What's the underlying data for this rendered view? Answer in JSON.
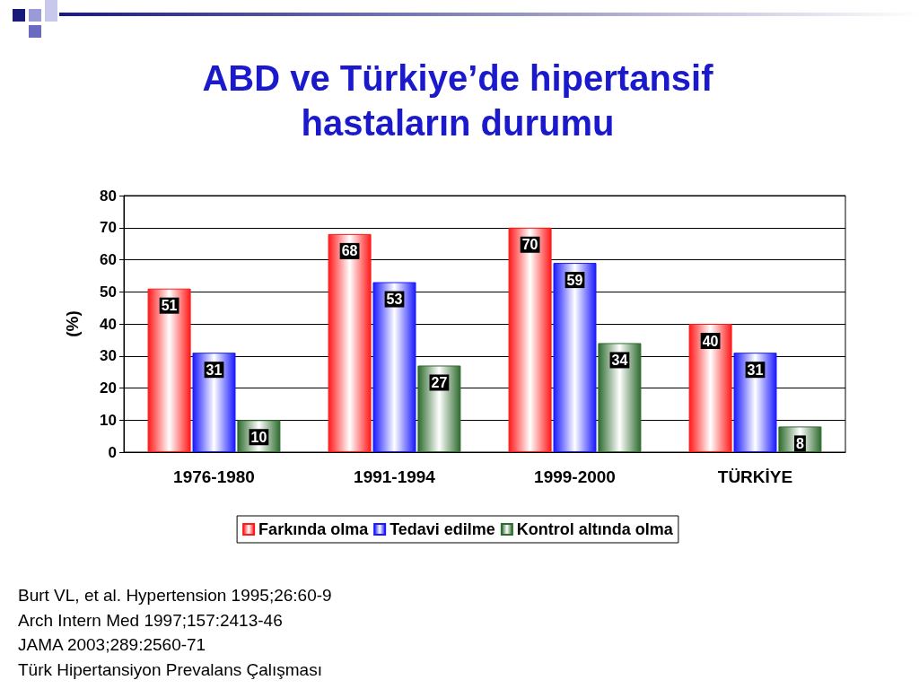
{
  "chart_data": {
    "type": "bar",
    "title": "ABD ve Türkiye’de hipertansif hastaların durumu",
    "ylabel": "(%)",
    "categories": [
      "1976-1980",
      "1991-1994",
      "1999-2000",
      "TÜRKİYE"
    ],
    "series": [
      {
        "name": "Farkında olma",
        "color": "#ff1a1a",
        "values": [
          51,
          68,
          70,
          40
        ]
      },
      {
        "name": "Tedavi edilme",
        "color": "#1a1aff",
        "values": [
          31,
          53,
          59,
          31
        ]
      },
      {
        "name": "Kontrol altında olma",
        "color": "#2e6b2e",
        "values": [
          10,
          27,
          34,
          8
        ]
      }
    ],
    "ylim": [
      0,
      80
    ],
    "yticks": [
      0,
      10,
      20,
      30,
      40,
      50,
      60,
      70,
      80
    ],
    "grid": "y",
    "legend": "bottom",
    "data_labels": true,
    "annotations": [
      "Burt VL, et al. Hypertension 1995;26:60-9",
      "Arch Intern Med 1997;157:2413-46",
      "JAMA 2003;289:2560-71",
      "Türk Hipertansiyon Prevalans Çalışması"
    ]
  }
}
